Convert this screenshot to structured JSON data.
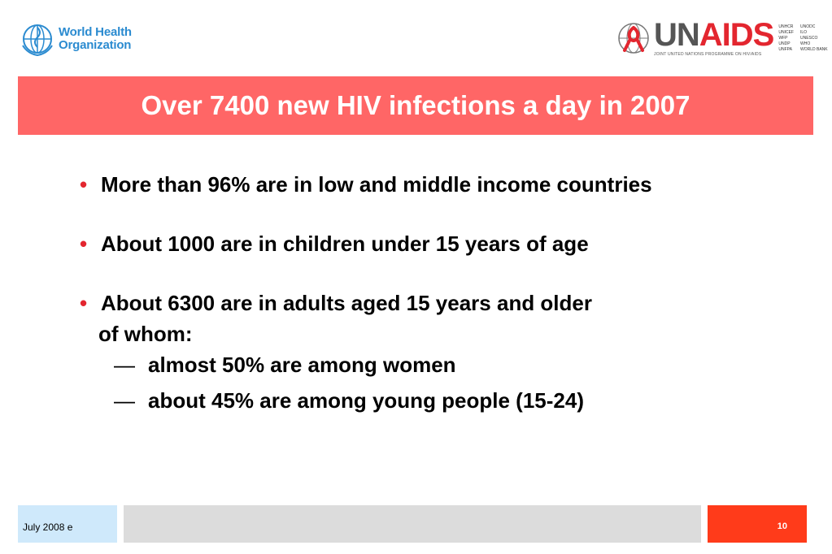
{
  "logos": {
    "who_line1": "World Health",
    "who_line2": "Organization",
    "unaids_un": "UN",
    "unaids_aids": "AIDS",
    "unaids_tagline": "JOINT UNITED NATIONS PROGRAMME ON HIV/AIDS",
    "cosponsors": [
      "UNHCR",
      "UNODC",
      "UNICEF",
      "ILO",
      "WFP",
      "UNESCO",
      "UNDP",
      "WHO",
      "UNFPA",
      "WORLD BANK"
    ]
  },
  "slide": {
    "title": "Over 7400 new HIV infections a day in 2007",
    "bullets": [
      "More than 96% are in low and middle income countries",
      "About 1000 are in children under 15 years of age",
      "About 6300 are in adults aged 15 years and older"
    ],
    "continuation": "of whom:",
    "sub_dash": "—",
    "sub_bullets": [
      "almost 50% are among women",
      "about 45% are among young people (15-24)"
    ],
    "bullet_symbol": "•"
  },
  "footer": {
    "date": "July 2008  e",
    "page_number": "10"
  },
  "colors": {
    "title_banner": "#ff6666",
    "bullet": "#e3262f",
    "who_blue": "#2b8bd0",
    "footer_left": "#cfe9fb",
    "footer_mid": "#dcdcdc",
    "footer_right": "#ff3b1a"
  }
}
